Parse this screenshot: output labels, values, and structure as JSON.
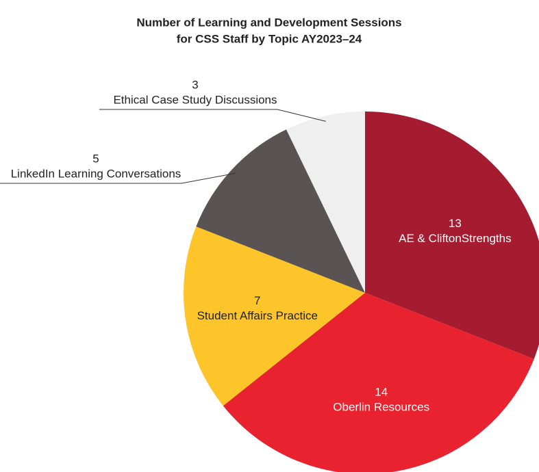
{
  "chart_data": {
    "type": "pie",
    "title": [
      "Number of Learning and Development Sessions",
      "for CSS Staff by Topic AY2023–24"
    ],
    "categories": [
      "AE & CliftonStrengths",
      "Oberlin Resources",
      "Student Affairs Practice",
      "LinkedIn Learning Conversations",
      "Ethical Case Study Discussions"
    ],
    "values": [
      13,
      14,
      7,
      5,
      3
    ],
    "colors": [
      "#a51c30",
      "#e8222e",
      "#fdc52a",
      "#595353",
      "#efefef"
    ]
  }
}
